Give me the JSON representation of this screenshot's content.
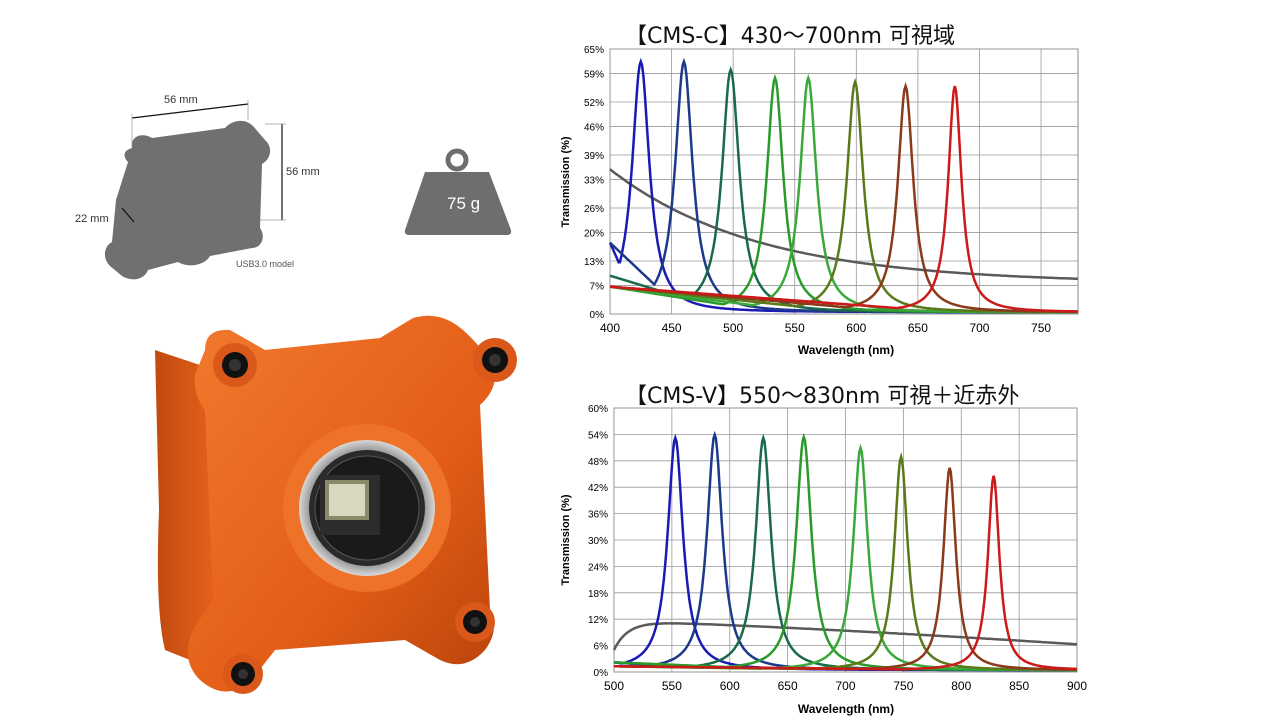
{
  "dimensions": {
    "width_label": "56 mm",
    "height_label": "56 mm",
    "depth_label": "22 mm",
    "model_label": "USB3.0 model"
  },
  "weight": {
    "label": "75 g"
  },
  "colors": {
    "camera_body": "#e8601a",
    "silhouette": "#707070",
    "weight_icon": "#6e6e6e",
    "series_blue": "#1a1ab4",
    "series_navy": "#1c3a8a",
    "series_teal": "#1a6a4a",
    "series_green1": "#2a9a2a",
    "series_green2": "#3aa83a",
    "series_olive": "#5a7a1a",
    "series_brown": "#8a3a1a",
    "series_red": "#cc1a1a",
    "series_gray": "#5a5a5a"
  },
  "chart_data": [
    {
      "type": "line",
      "title": "【CMS-C】430～700nm 可視域",
      "xlabel": "Wavelength (nm)",
      "ylabel": "Transmission (%)",
      "xlim": [
        400,
        780
      ],
      "ylim": [
        0,
        65
      ],
      "xticks": [
        400,
        450,
        500,
        550,
        600,
        650,
        700,
        750
      ],
      "yticks": [
        0,
        7,
        13,
        20,
        26,
        33,
        39,
        46,
        52,
        59,
        65
      ],
      "grid": true,
      "peaks": [
        {
          "center": 425,
          "peak": 61.5,
          "width": 17,
          "floor_left": 19,
          "color": "#1a1ab4"
        },
        {
          "center": 460,
          "peak": 61.5,
          "width": 17,
          "floor_left": 19,
          "color": "#1c3a8a"
        },
        {
          "center": 498,
          "peak": 59.5,
          "width": 17,
          "floor_left": 10,
          "color": "#1a6a4a"
        },
        {
          "center": 534,
          "peak": 57.5,
          "width": 16,
          "floor_left": 7,
          "color": "#2a9a2a"
        },
        {
          "center": 561,
          "peak": 57.5,
          "width": 16,
          "floor_left": 7,
          "color": "#3aa83a"
        },
        {
          "center": 599,
          "peak": 56.5,
          "width": 16,
          "floor_left": 7,
          "color": "#5a7a1a"
        },
        {
          "center": 640,
          "peak": 55.5,
          "width": 15,
          "floor_left": 7,
          "color": "#8a3a1a"
        },
        {
          "center": 680,
          "peak": 55.5,
          "width": 13,
          "floor_left": 7,
          "color": "#cc1a1a"
        }
      ],
      "baseline": {
        "start": 35.5,
        "end": 7.5,
        "color": "#5a5a5a"
      }
    },
    {
      "type": "line",
      "title": "【CMS-V】550～830nm 可視＋近赤外",
      "xlabel": "Wavelength (nm)",
      "ylabel": "Transmission (%)",
      "xlim": [
        500,
        900
      ],
      "ylim": [
        0,
        60
      ],
      "xticks": [
        500,
        550,
        600,
        650,
        700,
        750,
        800,
        850,
        900
      ],
      "yticks": [
        0,
        6,
        12,
        18,
        24,
        30,
        36,
        42,
        48,
        54,
        60
      ],
      "grid": true,
      "peaks": [
        {
          "center": 553,
          "peak": 52.8,
          "width": 16,
          "floor_left": 2,
          "color": "#1a1ab4"
        },
        {
          "center": 587,
          "peak": 53.5,
          "width": 16,
          "floor_left": 2,
          "color": "#1c3a8a"
        },
        {
          "center": 629,
          "peak": 52.8,
          "width": 16,
          "floor_left": 2,
          "color": "#1a6a4a"
        },
        {
          "center": 664,
          "peak": 53.0,
          "width": 16,
          "floor_left": 2,
          "color": "#2a9a2a"
        },
        {
          "center": 713,
          "peak": 50.5,
          "width": 15,
          "floor_left": 1,
          "color": "#3aa83a"
        },
        {
          "center": 748,
          "peak": 48.5,
          "width": 14,
          "floor_left": 1,
          "color": "#5a7a1a"
        },
        {
          "center": 790,
          "peak": 46.0,
          "width": 13,
          "floor_left": 1,
          "color": "#8a3a1a"
        },
        {
          "center": 828,
          "peak": 44.2,
          "width": 12,
          "floor_left": 1,
          "color": "#cc1a1a"
        }
      ],
      "baseline": {
        "start": 5.0,
        "plateau": 11.5,
        "end": 6.3,
        "color": "#5a5a5a"
      }
    }
  ]
}
